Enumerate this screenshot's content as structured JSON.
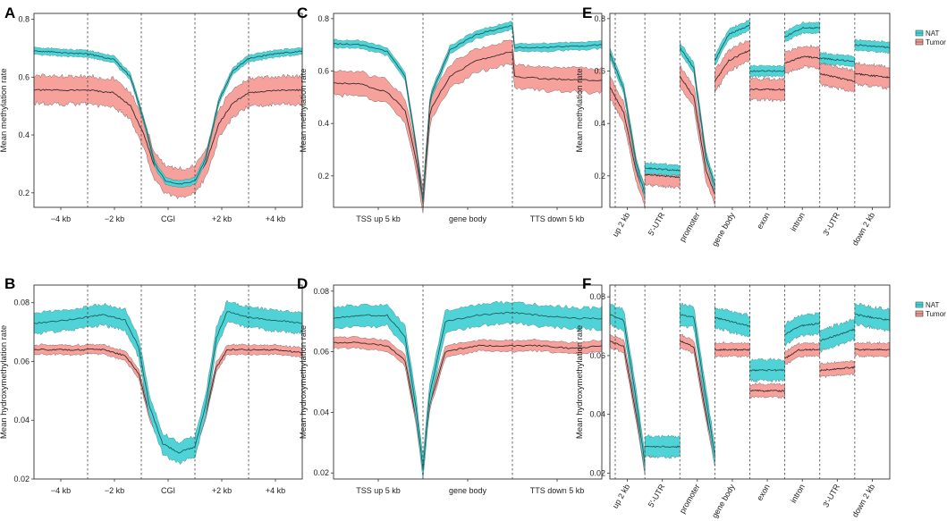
{
  "legend": {
    "items": [
      {
        "label": "NAT",
        "color": "#4fd3d6"
      },
      {
        "label": "Tumor",
        "color": "#f6a19c"
      }
    ]
  },
  "colors": {
    "nat_fill": "#4fd3d6",
    "nat_line": "#1e5f5f",
    "tumor_fill": "#f6a19c",
    "tumor_line": "#3a2a2a"
  },
  "chart_data": [
    {
      "letter": "A",
      "type": "line",
      "ylabel": "Mean methylation rate",
      "ylim": [
        0.15,
        0.82
      ],
      "yticks": [
        0.2,
        0.4,
        0.6,
        0.8
      ],
      "ytick_labels": [
        "0.2",
        "0.4",
        "0.6",
        "0.8"
      ],
      "regions": [
        "−4 kb",
        "−2 kb",
        "CGI",
        "+2 kb",
        "+4 kb"
      ],
      "rotate_labels": false,
      "series": [
        {
          "name": "NAT",
          "points": [
            [
              0,
              0.69
            ],
            [
              0.5,
              0.685
            ],
            [
              1,
              0.68
            ],
            [
              1.5,
              0.66
            ],
            [
              1.8,
              0.6
            ],
            [
              2.05,
              0.45
            ],
            [
              2.25,
              0.3
            ],
            [
              2.45,
              0.24
            ],
            [
              2.7,
              0.23
            ],
            [
              3.0,
              0.24
            ],
            [
              3.2,
              0.32
            ],
            [
              3.45,
              0.52
            ],
            [
              3.7,
              0.62
            ],
            [
              4,
              0.665
            ],
            [
              4.5,
              0.68
            ],
            [
              5,
              0.69
            ]
          ],
          "band": 0.012
        },
        {
          "name": "Tumor",
          "points": [
            [
              0,
              0.555
            ],
            [
              0.5,
              0.555
            ],
            [
              1,
              0.555
            ],
            [
              1.5,
              0.545
            ],
            [
              1.8,
              0.5
            ],
            [
              2.05,
              0.4
            ],
            [
              2.25,
              0.29
            ],
            [
              2.45,
              0.245
            ],
            [
              2.7,
              0.235
            ],
            [
              3.0,
              0.245
            ],
            [
              3.2,
              0.3
            ],
            [
              3.45,
              0.44
            ],
            [
              3.7,
              0.51
            ],
            [
              4,
              0.545
            ],
            [
              4.5,
              0.555
            ],
            [
              5,
              0.555
            ]
          ],
          "band": 0.048
        }
      ]
    },
    {
      "letter": "C",
      "type": "line",
      "ylabel": "Mean methylation rate",
      "ylim": [
        0.08,
        0.82
      ],
      "yticks": [
        0.2,
        0.4,
        0.6,
        0.8
      ],
      "ytick_labels": [
        "0.2",
        "0.4",
        "0.6",
        "0.8"
      ],
      "regions": [
        "TSS up 5 kb",
        "gene body",
        "TTS down 5 kb"
      ],
      "rotate_labels": false,
      "series": [
        {
          "name": "NAT",
          "points": [
            [
              0,
              0.705
            ],
            [
              0.3,
              0.7
            ],
            [
              0.6,
              0.675
            ],
            [
              0.8,
              0.58
            ],
            [
              0.93,
              0.3
            ],
            [
              1.0,
              0.1
            ],
            [
              1.08,
              0.5
            ],
            [
              1.3,
              0.68
            ],
            [
              1.6,
              0.74
            ],
            [
              2.0,
              0.775
            ],
            [
              2.0,
              0.69
            ],
            [
              2.4,
              0.69
            ],
            [
              3,
              0.7
            ]
          ],
          "band": 0.015
        },
        {
          "name": "Tumor",
          "points": [
            [
              0,
              0.555
            ],
            [
              0.3,
              0.55
            ],
            [
              0.6,
              0.52
            ],
            [
              0.8,
              0.45
            ],
            [
              0.93,
              0.25
            ],
            [
              1.0,
              0.105
            ],
            [
              1.08,
              0.45
            ],
            [
              1.3,
              0.58
            ],
            [
              1.6,
              0.64
            ],
            [
              2.0,
              0.675
            ],
            [
              2.0,
              0.58
            ],
            [
              2.4,
              0.57
            ],
            [
              3,
              0.565
            ]
          ],
          "band": 0.045
        }
      ]
    },
    {
      "letter": "E",
      "type": "line",
      "ylabel": "Mean methylation rate",
      "ylim": [
        0.08,
        0.82
      ],
      "yticks": [
        0.2,
        0.4,
        0.6,
        0.8
      ],
      "ytick_labels": [
        "0.2",
        "0.4",
        "0.6",
        "0.8"
      ],
      "regions": [
        "up 2 kb",
        "5′-UTR",
        "promoter",
        "gene body",
        "exon",
        "intron",
        "3′-UTR",
        "down 2 kb"
      ],
      "rotate_labels": true,
      "series": [
        {
          "name": "NAT",
          "segments": [
            [
              [
                0,
                0.67
              ],
              [
                0.4,
                0.53
              ],
              [
                0.75,
                0.25
              ],
              [
                1.0,
                0.13
              ]
            ],
            [
              [
                1.0,
                0.23
              ],
              [
                2.0,
                0.22
              ]
            ],
            [
              [
                2.0,
                0.69
              ],
              [
                2.4,
                0.61
              ],
              [
                2.75,
                0.27
              ],
              [
                3.0,
                0.16
              ]
            ],
            [
              [
                3.0,
                0.64
              ],
              [
                3.4,
                0.74
              ],
              [
                4.0,
                0.775
              ]
            ],
            [
              [
                4.0,
                0.6
              ],
              [
                5.0,
                0.6
              ]
            ],
            [
              [
                5.0,
                0.73
              ],
              [
                5.5,
                0.765
              ],
              [
                6.0,
                0.765
              ]
            ],
            [
              [
                6.0,
                0.65
              ],
              [
                7.0,
                0.635
              ]
            ],
            [
              [
                7.0,
                0.7
              ],
              [
                8.0,
                0.69
              ]
            ]
          ],
          "band": 0.02
        },
        {
          "name": "Tumor",
          "segments": [
            [
              [
                0,
                0.54
              ],
              [
                0.4,
                0.44
              ],
              [
                0.75,
                0.22
              ],
              [
                1.0,
                0.12
              ]
            ],
            [
              [
                1.0,
                0.205
              ],
              [
                2.0,
                0.195
              ]
            ],
            [
              [
                2.0,
                0.58
              ],
              [
                2.4,
                0.5
              ],
              [
                2.75,
                0.22
              ],
              [
                3.0,
                0.13
              ]
            ],
            [
              [
                3.0,
                0.56
              ],
              [
                3.4,
                0.64
              ],
              [
                4.0,
                0.68
              ]
            ],
            [
              [
                4.0,
                0.53
              ],
              [
                5.0,
                0.53
              ]
            ],
            [
              [
                5.0,
                0.63
              ],
              [
                5.5,
                0.655
              ],
              [
                6.0,
                0.65
              ]
            ],
            [
              [
                6.0,
                0.59
              ],
              [
                7.0,
                0.56
              ]
            ],
            [
              [
                7.0,
                0.59
              ],
              [
                8.0,
                0.575
              ]
            ]
          ],
          "band": 0.04
        }
      ]
    },
    {
      "letter": "B",
      "type": "line",
      "ylabel": "Mean hydroxymethylation rate",
      "ylim": [
        0.02,
        0.086
      ],
      "yticks": [
        0.02,
        0.04,
        0.06,
        0.08
      ],
      "ytick_labels": [
        "0.02",
        "0.04",
        "0.06",
        "0.08"
      ],
      "regions": [
        "−4 kb",
        "−2 kb",
        "CGI",
        "+2 kb",
        "+4 kb"
      ],
      "rotate_labels": false,
      "series": [
        {
          "name": "NAT",
          "points": [
            [
              0,
              0.073
            ],
            [
              0.6,
              0.074
            ],
            [
              1.3,
              0.076
            ],
            [
              1.7,
              0.074
            ],
            [
              1.95,
              0.065
            ],
            [
              2.15,
              0.045
            ],
            [
              2.4,
              0.032
            ],
            [
              2.7,
              0.029
            ],
            [
              3.0,
              0.031
            ],
            [
              3.2,
              0.045
            ],
            [
              3.4,
              0.068
            ],
            [
              3.6,
              0.077
            ],
            [
              4,
              0.075
            ],
            [
              4.5,
              0.074
            ],
            [
              5,
              0.073
            ]
          ],
          "band": 0.0035
        },
        {
          "name": "Tumor",
          "points": [
            [
              0,
              0.064
            ],
            [
              0.6,
              0.064
            ],
            [
              1.3,
              0.064
            ],
            [
              1.7,
              0.062
            ],
            [
              1.95,
              0.056
            ],
            [
              2.15,
              0.042
            ],
            [
              2.4,
              0.032
            ],
            [
              2.7,
              0.03
            ],
            [
              3.0,
              0.031
            ],
            [
              3.2,
              0.042
            ],
            [
              3.4,
              0.058
            ],
            [
              3.6,
              0.064
            ],
            [
              4,
              0.064
            ],
            [
              4.5,
              0.064
            ],
            [
              5,
              0.063
            ]
          ],
          "band": 0.0016
        }
      ]
    },
    {
      "letter": "D",
      "type": "line",
      "ylabel": "Mean hydroxymethylation rate",
      "ylim": [
        0.018,
        0.082
      ],
      "yticks": [
        0.02,
        0.04,
        0.06,
        0.08
      ],
      "ytick_labels": [
        "0.02",
        "0.04",
        "0.06",
        "0.08"
      ],
      "regions": [
        "TSS up 5 kb",
        "gene body",
        "TTS down 5 kb"
      ],
      "rotate_labels": false,
      "series": [
        {
          "name": "NAT",
          "points": [
            [
              0,
              0.071
            ],
            [
              0.3,
              0.072
            ],
            [
              0.6,
              0.072
            ],
            [
              0.8,
              0.065
            ],
            [
              0.93,
              0.04
            ],
            [
              1.0,
              0.021
            ],
            [
              1.07,
              0.045
            ],
            [
              1.25,
              0.07
            ],
            [
              1.6,
              0.072
            ],
            [
              2.0,
              0.073
            ],
            [
              2.3,
              0.072
            ],
            [
              2.7,
              0.071
            ],
            [
              3,
              0.071
            ]
          ],
          "band": 0.0035
        },
        {
          "name": "Tumor",
          "points": [
            [
              0,
              0.063
            ],
            [
              0.3,
              0.063
            ],
            [
              0.6,
              0.062
            ],
            [
              0.8,
              0.057
            ],
            [
              0.93,
              0.037
            ],
            [
              1.0,
              0.021
            ],
            [
              1.07,
              0.042
            ],
            [
              1.25,
              0.06
            ],
            [
              1.6,
              0.062
            ],
            [
              2.0,
              0.062
            ],
            [
              2.3,
              0.062
            ],
            [
              2.7,
              0.061
            ],
            [
              3,
              0.062
            ]
          ],
          "band": 0.0018
        }
      ]
    },
    {
      "letter": "F",
      "type": "line",
      "ylabel": "Mean hydroxymethylation rate",
      "ylim": [
        0.018,
        0.084
      ],
      "yticks": [
        0.02,
        0.04,
        0.06,
        0.08
      ],
      "ytick_labels": [
        "0.02",
        "0.04",
        "0.06",
        "0.08"
      ],
      "regions": [
        "up 2 kb",
        "5′-UTR",
        "promoter",
        "gene body",
        "exon",
        "intron",
        "3′-UTR",
        "down 2 kb"
      ],
      "rotate_labels": true,
      "series": [
        {
          "name": "NAT",
          "segments": [
            [
              [
                0,
                0.074
              ],
              [
                0.4,
                0.072
              ],
              [
                0.75,
                0.045
              ],
              [
                1.0,
                0.023
              ]
            ],
            [
              [
                1.0,
                0.029
              ],
              [
                2.0,
                0.029
              ]
            ],
            [
              [
                2.0,
                0.074
              ],
              [
                2.4,
                0.073
              ],
              [
                2.75,
                0.045
              ],
              [
                3.0,
                0.026
              ]
            ],
            [
              [
                3.0,
                0.073
              ],
              [
                4.0,
                0.07
              ]
            ],
            [
              [
                4.0,
                0.055
              ],
              [
                5.0,
                0.055
              ]
            ],
            [
              [
                5.0,
                0.067
              ],
              [
                5.4,
                0.07
              ],
              [
                6.0,
                0.071
              ]
            ],
            [
              [
                6.0,
                0.065
              ],
              [
                7.0,
                0.069
              ]
            ],
            [
              [
                7.0,
                0.074
              ],
              [
                8.0,
                0.072
              ]
            ]
          ],
          "band": 0.0035
        },
        {
          "name": "Tumor",
          "segments": [
            [
              [
                0,
                0.065
              ],
              [
                0.4,
                0.063
              ],
              [
                0.75,
                0.04
              ],
              [
                1.0,
                0.022
              ]
            ],
            [
              [
                1.0,
                0.028
              ],
              [
                2.0,
                0.028
              ]
            ],
            [
              [
                2.0,
                0.065
              ],
              [
                2.4,
                0.063
              ],
              [
                2.75,
                0.04
              ],
              [
                3.0,
                0.025
              ]
            ],
            [
              [
                3.0,
                0.062
              ],
              [
                4.0,
                0.062
              ]
            ],
            [
              [
                4.0,
                0.048
              ],
              [
                5.0,
                0.048
              ]
            ],
            [
              [
                5.0,
                0.059
              ],
              [
                5.4,
                0.062
              ],
              [
                6.0,
                0.062
              ]
            ],
            [
              [
                6.0,
                0.055
              ],
              [
                7.0,
                0.056
              ]
            ],
            [
              [
                7.0,
                0.062
              ],
              [
                8.0,
                0.062
              ]
            ]
          ],
          "band": 0.0022
        }
      ]
    }
  ]
}
